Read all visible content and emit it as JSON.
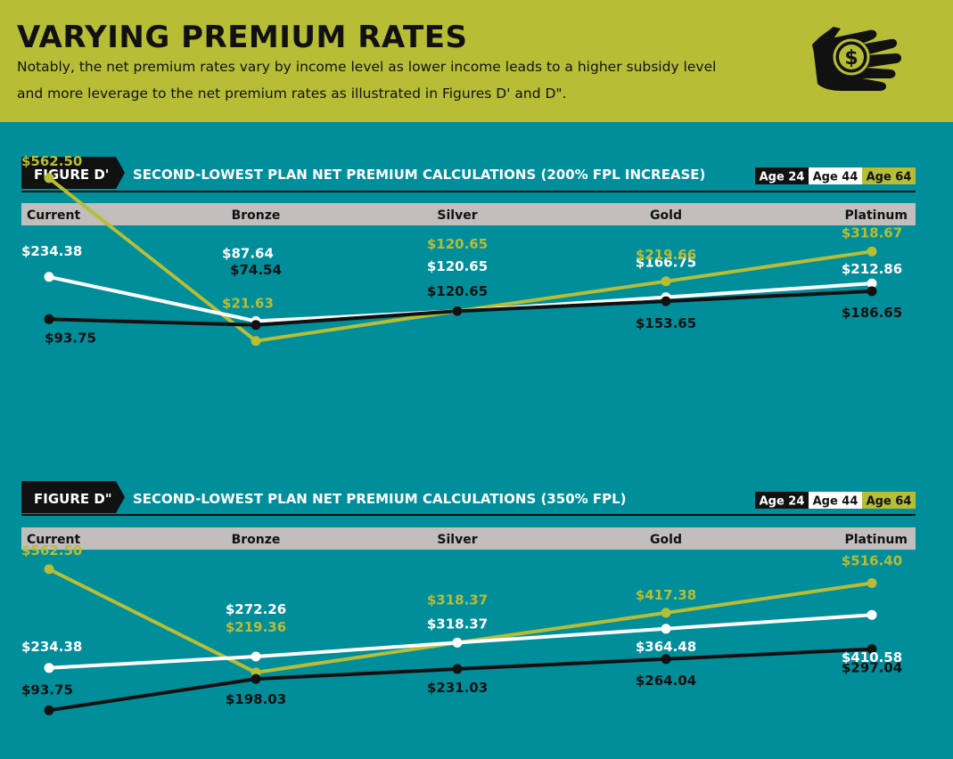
{
  "header": {
    "title": "VARYING PREMIUM RATES",
    "subtitle_lines": [
      "Notably, the net premium rates vary by income level as lower income leads to a higher subsidy level",
      "and more leverage to the net premium rates as illustrated in Figures D' and D\"."
    ],
    "icon": "hand-with-dollar-coin-icon"
  },
  "colors": {
    "background": "#008e9b",
    "header_bg": "#b7bd35",
    "axis_band": "#c2bebe",
    "age24": "#111111",
    "age44": "#ffffff",
    "age64": "#b7bd35"
  },
  "chart_data": [
    {
      "type": "line",
      "figure_label": "FIGURE D'",
      "title": "SECOND-LOWEST PLAN NET PREMIUM CALCULATIONS (200% FPL INCREASE)",
      "legend_position": "top-right",
      "categories": [
        "Current",
        "Bronze",
        "Silver",
        "Gold",
        "Platinum"
      ],
      "ylim": [
        0,
        600
      ],
      "grid": false,
      "series": [
        {
          "name": "Age 24",
          "values": [
            93.75,
            74.54,
            120.65,
            153.65,
            186.65
          ],
          "labels": [
            "$93.75",
            "$74.54",
            "$120.65",
            "$153.65",
            "$186.65"
          ]
        },
        {
          "name": "Age 44",
          "values": [
            234.38,
            87.64,
            120.65,
            166.75,
            212.86
          ],
          "labels": [
            "$234.38",
            "$87.64",
            "$120.65",
            "$166.75",
            "$212.86"
          ]
        },
        {
          "name": "Age 64",
          "values": [
            562.5,
            21.63,
            120.65,
            219.66,
            318.67
          ],
          "labels": [
            "$562.50",
            "$21.63",
            "$120.65",
            "$219.66",
            "$318.67"
          ]
        }
      ]
    },
    {
      "type": "line",
      "figure_label": "FIGURE D\"",
      "title": "SECOND-LOWEST PLAN NET PREMIUM CALCULATIONS (350% FPL)",
      "legend_position": "top-right",
      "categories": [
        "Current",
        "Bronze",
        "Silver",
        "Gold",
        "Platinum"
      ],
      "ylim": [
        0,
        600
      ],
      "grid": false,
      "series": [
        {
          "name": "Age 24",
          "values": [
            93.75,
            198.03,
            231.03,
            264.04,
            297.04
          ],
          "labels": [
            "$93.75",
            "$198.03",
            "$231.03",
            "$264.04",
            "$297.04"
          ]
        },
        {
          "name": "Age 44",
          "values": [
            234.38,
            272.26,
            318.37,
            364.48,
            410.58
          ],
          "labels": [
            "$234.38",
            "$272.26",
            "$318.37",
            "$364.48",
            "$410.58"
          ]
        },
        {
          "name": "Age 64",
          "values": [
            562.5,
            219.36,
            318.37,
            417.38,
            516.4
          ],
          "labels": [
            "$562.50",
            "$219.36",
            "$318.37",
            "$417.38",
            "$516.40"
          ]
        }
      ]
    }
  ]
}
